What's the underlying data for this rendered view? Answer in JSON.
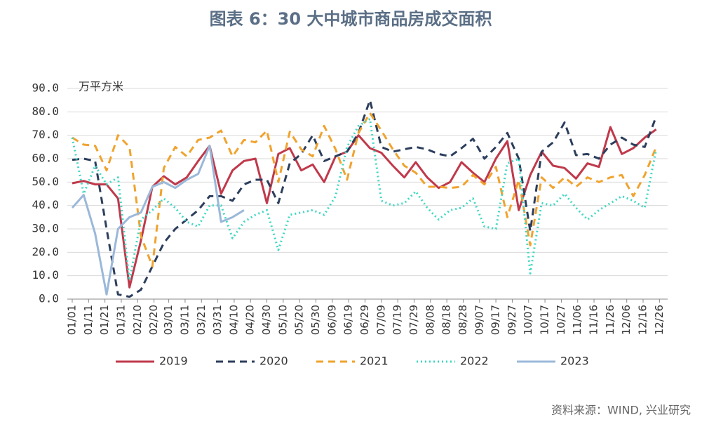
{
  "chart_data": {
    "type": "line",
    "title": "图表 6：30 大中城市商品房成交面积",
    "y_unit": "万平方米",
    "source": "资料来源：WIND, 兴业研究",
    "x": [
      1,
      8,
      15,
      22,
      29,
      36,
      43,
      50,
      57,
      64,
      71,
      78,
      85,
      92,
      99,
      106,
      113,
      120,
      127,
      134,
      141,
      148,
      155,
      162,
      169,
      176,
      183,
      190,
      197,
      204,
      211,
      218,
      225,
      232,
      239,
      246,
      253,
      260,
      267,
      274,
      281,
      288,
      295,
      302,
      309,
      316,
      323,
      330,
      337,
      344,
      351,
      358
    ],
    "xlim": [
      -2,
      365
    ],
    "xticks": [
      {
        "value": 1,
        "label": "01/01"
      },
      {
        "value": 11,
        "label": "01/11"
      },
      {
        "value": 21,
        "label": "01/21"
      },
      {
        "value": 31,
        "label": "01/31"
      },
      {
        "value": 41,
        "label": "02/10"
      },
      {
        "value": 51,
        "label": "02/20"
      },
      {
        "value": 60,
        "label": "03/01"
      },
      {
        "value": 70,
        "label": "03/11"
      },
      {
        "value": 80,
        "label": "03/21"
      },
      {
        "value": 90,
        "label": "03/31"
      },
      {
        "value": 100,
        "label": "04/10"
      },
      {
        "value": 110,
        "label": "04/20"
      },
      {
        "value": 120,
        "label": "04/30"
      },
      {
        "value": 130,
        "label": "05/10"
      },
      {
        "value": 140,
        "label": "05/20"
      },
      {
        "value": 150,
        "label": "05/30"
      },
      {
        "value": 160,
        "label": "06/09"
      },
      {
        "value": 170,
        "label": "06/19"
      },
      {
        "value": 180,
        "label": "06/29"
      },
      {
        "value": 190,
        "label": "07/09"
      },
      {
        "value": 200,
        "label": "07/19"
      },
      {
        "value": 210,
        "label": "07/29"
      },
      {
        "value": 220,
        "label": "08/08"
      },
      {
        "value": 230,
        "label": "08/18"
      },
      {
        "value": 240,
        "label": "08/28"
      },
      {
        "value": 250,
        "label": "09/07"
      },
      {
        "value": 260,
        "label": "09/17"
      },
      {
        "value": 270,
        "label": "09/27"
      },
      {
        "value": 280,
        "label": "10/07"
      },
      {
        "value": 290,
        "label": "10/17"
      },
      {
        "value": 300,
        "label": "10/27"
      },
      {
        "value": 310,
        "label": "11/06"
      },
      {
        "value": 320,
        "label": "11/16"
      },
      {
        "value": 330,
        "label": "11/26"
      },
      {
        "value": 340,
        "label": "12/06"
      },
      {
        "value": 350,
        "label": "12/16"
      },
      {
        "value": 360,
        "label": "12/26"
      }
    ],
    "ylim": [
      0,
      90
    ],
    "yticks": [
      {
        "value": 0,
        "label": "0.0"
      },
      {
        "value": 10,
        "label": "10.0"
      },
      {
        "value": 20,
        "label": "20.0"
      },
      {
        "value": 30,
        "label": "30.0"
      },
      {
        "value": 40,
        "label": "40.0"
      },
      {
        "value": 50,
        "label": "50.0"
      },
      {
        "value": 60,
        "label": "60.0"
      },
      {
        "value": 70,
        "label": "70.0"
      },
      {
        "value": 80,
        "label": "80.0"
      },
      {
        "value": 90,
        "label": "90.0"
      }
    ],
    "grid": true,
    "legend": "bottom",
    "series": [
      {
        "name": "2019",
        "color": "#c0394b",
        "style": "solid",
        "values": [
          49.5,
          50.5,
          49,
          49,
          43,
          5,
          25,
          48,
          52.5,
          49,
          52,
          59,
          65.5,
          45,
          55,
          59,
          60,
          41,
          62,
          64.5,
          55,
          57.5,
          50,
          61,
          63,
          70,
          64.5,
          62.5,
          57,
          52,
          58.5,
          52,
          47.5,
          50,
          58.5,
          54,
          50,
          60,
          67.5,
          38,
          53,
          63,
          57,
          56,
          51.5,
          58,
          56.5,
          73.5,
          62,
          64.5,
          69,
          72.5
        ]
      },
      {
        "name": "2020",
        "color": "#2c3e5c",
        "style": "dashed",
        "values": [
          59.5,
          60,
          59,
          30,
          2,
          1,
          4,
          14,
          24,
          30,
          34,
          38,
          44,
          44,
          42,
          49,
          51,
          51,
          41,
          58,
          62,
          70,
          59,
          61,
          63,
          71,
          85,
          65,
          63,
          64,
          65,
          64,
          62,
          61,
          64.5,
          68.5,
          60,
          65,
          71,
          60,
          29,
          63,
          67,
          75.5,
          61.5,
          62,
          60,
          66,
          69,
          66,
          65,
          78
        ]
      },
      {
        "name": "2021",
        "color": "#f0a32e",
        "style": "dashed",
        "values": [
          69,
          66,
          65.5,
          55,
          70,
          65,
          27,
          14,
          56,
          65,
          61,
          68,
          69,
          72,
          61,
          68,
          67,
          72,
          50,
          71.5,
          64,
          61,
          74,
          64,
          51,
          71,
          79.5,
          72,
          64,
          57,
          54,
          48,
          48,
          47.5,
          48,
          53,
          49,
          56.5,
          35,
          51,
          23,
          52,
          47.5,
          52,
          48,
          52,
          50,
          52,
          53,
          44,
          53,
          65
        ]
      },
      {
        "name": "2022",
        "color": "#3ed8c3",
        "style": "dotted",
        "values": [
          69,
          45,
          57,
          49,
          52,
          8,
          34,
          38,
          43,
          39,
          33,
          31,
          40,
          40,
          26,
          33,
          36,
          38,
          21,
          36,
          37,
          38,
          36,
          44,
          65,
          74,
          77,
          42,
          40,
          41,
          46,
          39,
          34,
          38,
          39,
          43,
          31,
          30,
          58,
          60,
          11,
          41,
          40,
          45,
          39,
          34,
          38,
          41,
          44,
          42,
          39,
          64
        ]
      },
      {
        "name": "2023",
        "color": "#9bb8d9",
        "style": "solid",
        "values": [
          39,
          44.5,
          28,
          2,
          30,
          35,
          37,
          48,
          50,
          47.5,
          51,
          53.5,
          65.5,
          33,
          35,
          38,
          null,
          null,
          null,
          null,
          null,
          null,
          null,
          null,
          null,
          null,
          null,
          null,
          null,
          null,
          null,
          null,
          null,
          null,
          null,
          null,
          null,
          null,
          null,
          null,
          null,
          null,
          null,
          null,
          null,
          null,
          null,
          null,
          null,
          null,
          null,
          null
        ]
      }
    ]
  }
}
